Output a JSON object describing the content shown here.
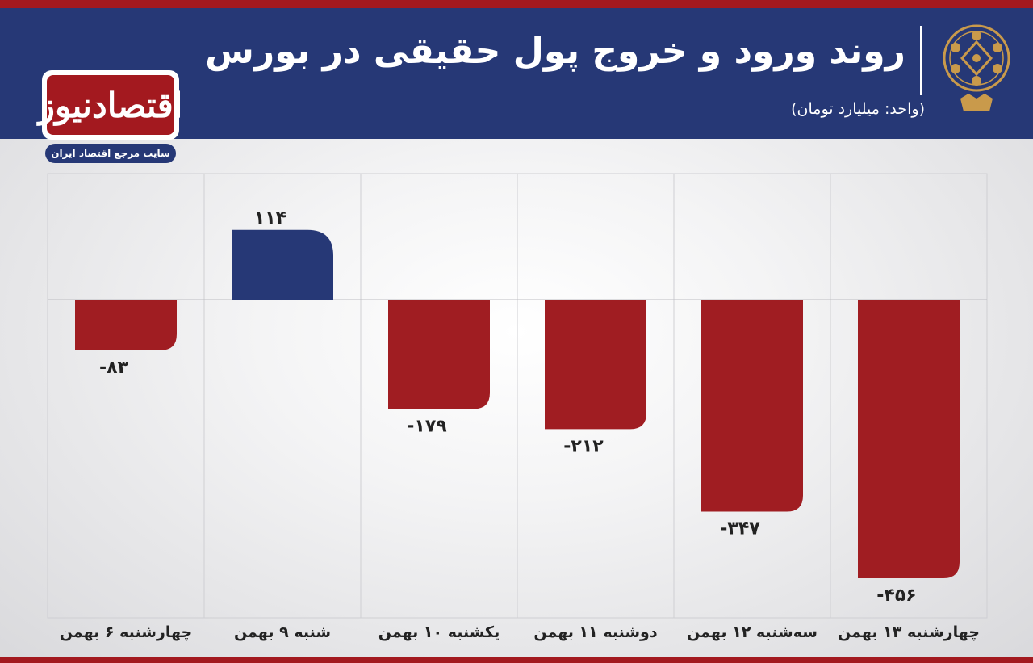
{
  "header": {
    "title": "روند ورود و خروج پول حقیقی در بورس",
    "unit": "(واحد: میلیارد تومان)"
  },
  "brand": {
    "name": "اقتصادنیوز",
    "tagline": "سایت مرجع اقتصاد ایران"
  },
  "colors": {
    "header_bg": "#263876",
    "accent_red": "#a3191f",
    "negative_bar": "#a01d22",
    "positive_bar": "#263876",
    "emblem_gold": "#c99a4b"
  },
  "chart_data": {
    "type": "bar",
    "categories": [
      "چهارشنبه ۶ بهمن",
      "شنبه ۹ بهمن",
      "یکشنبه ۱۰ بهمن",
      "دوشنبه ۱۱ بهمن",
      "سه‌شنبه ۱۲ بهمن",
      "چهارشنبه ۱۳ بهمن"
    ],
    "values": [
      -83,
      114,
      -179,
      -212,
      -347,
      -456
    ],
    "value_labels": [
      "-۸۳",
      "۱۱۴",
      "-۱۷۹",
      "-۲۱۲",
      "-۳۴۷",
      "-۴۵۶"
    ],
    "ylim": [
      -510,
      155
    ],
    "grid": true,
    "title": "روند ورود و خروج پول حقیقی در بورس"
  }
}
